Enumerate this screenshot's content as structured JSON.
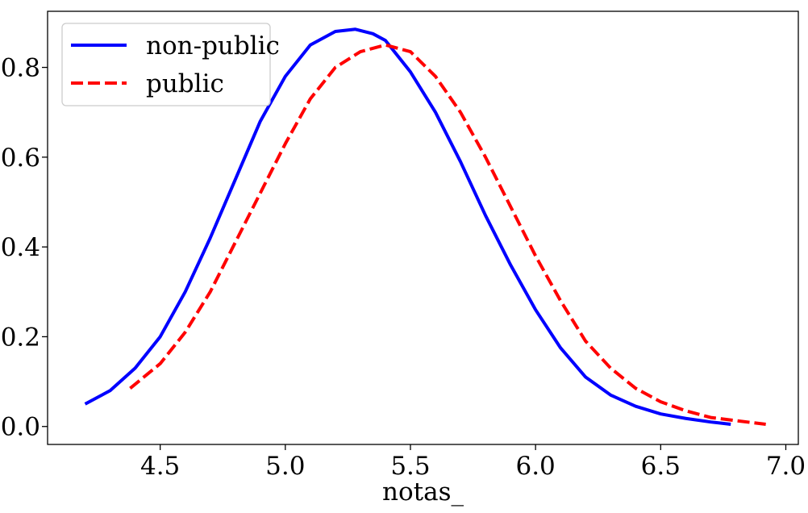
{
  "chart_data": {
    "type": "line",
    "title": "",
    "xlabel": "notas_",
    "ylabel": "",
    "xlim": [
      4.05,
      7.05
    ],
    "ylim": [
      -0.04,
      0.925
    ],
    "xticks": [
      4.5,
      5.0,
      5.5,
      6.0,
      6.5,
      7.0
    ],
    "xtick_labels": [
      "4.5",
      "5.0",
      "5.5",
      "6.0",
      "6.5",
      "7.0"
    ],
    "yticks": [
      0.0,
      0.2,
      0.4,
      0.6,
      0.8
    ],
    "ytick_labels": [
      "0.0",
      "0.2",
      "0.4",
      "0.6",
      "0.8"
    ],
    "grid": false,
    "legend_position": "top-left",
    "series": [
      {
        "name": "non-public",
        "color": "#0000ff",
        "style": "solid",
        "x": [
          4.2,
          4.3,
          4.4,
          4.5,
          4.6,
          4.7,
          4.8,
          4.9,
          5.0,
          5.1,
          5.2,
          5.28,
          5.35,
          5.4,
          5.5,
          5.6,
          5.7,
          5.8,
          5.9,
          6.0,
          6.1,
          6.2,
          6.3,
          6.4,
          6.5,
          6.6,
          6.7,
          6.78
        ],
        "y": [
          0.05,
          0.08,
          0.13,
          0.2,
          0.3,
          0.42,
          0.55,
          0.68,
          0.78,
          0.85,
          0.88,
          0.885,
          0.875,
          0.86,
          0.79,
          0.7,
          0.59,
          0.47,
          0.36,
          0.26,
          0.175,
          0.11,
          0.07,
          0.045,
          0.028,
          0.018,
          0.01,
          0.005
        ]
      },
      {
        "name": "public",
        "color": "#ff0000",
        "style": "dashed",
        "x": [
          4.38,
          4.5,
          4.6,
          4.7,
          4.8,
          4.9,
          5.0,
          5.1,
          5.2,
          5.3,
          5.4,
          5.5,
          5.6,
          5.7,
          5.8,
          5.9,
          6.0,
          6.1,
          6.2,
          6.3,
          6.4,
          6.5,
          6.6,
          6.7,
          6.8,
          6.92
        ],
        "y": [
          0.085,
          0.14,
          0.21,
          0.3,
          0.41,
          0.52,
          0.63,
          0.73,
          0.8,
          0.835,
          0.85,
          0.835,
          0.78,
          0.7,
          0.6,
          0.49,
          0.38,
          0.28,
          0.19,
          0.13,
          0.085,
          0.055,
          0.035,
          0.02,
          0.013,
          0.005
        ]
      }
    ]
  }
}
